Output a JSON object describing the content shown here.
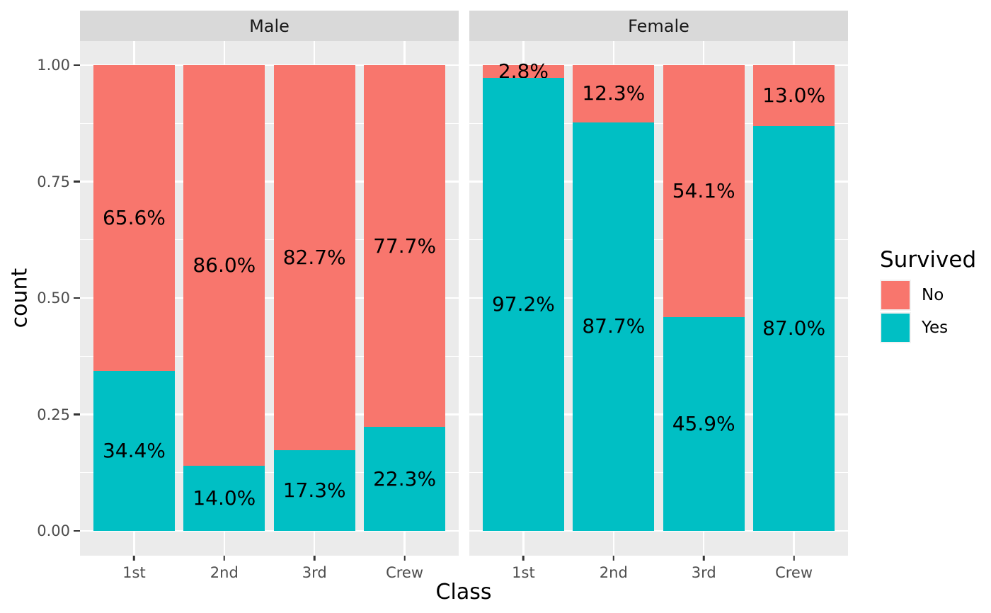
{
  "chart_data": {
    "type": "bar",
    "stacking": "fill",
    "title": "",
    "xlabel": "Class",
    "ylabel": "count",
    "ylim": [
      0,
      1
    ],
    "grid": true,
    "y_ticks": [
      "1.00",
      "0.75",
      "0.50",
      "0.25",
      "0.00"
    ],
    "y_tick_values": [
      1.0,
      0.75,
      0.5,
      0.25,
      0.0
    ],
    "y_minor_values": [
      0.875,
      0.625,
      0.375,
      0.125
    ],
    "categories": [
      "1st",
      "2nd",
      "3rd",
      "Crew"
    ],
    "facets": [
      {
        "label": "Male",
        "categories": [
          "1st",
          "2nd",
          "3rd",
          "Crew"
        ],
        "series": [
          {
            "name": "No",
            "values": [
              0.656,
              0.86,
              0.827,
              0.777
            ],
            "labels": [
              "65.6%",
              "86.0%",
              "82.7%",
              "77.7%"
            ]
          },
          {
            "name": "Yes",
            "values": [
              0.344,
              0.14,
              0.173,
              0.223
            ],
            "labels": [
              "34.4%",
              "14.0%",
              "17.3%",
              "22.3%"
            ]
          }
        ]
      },
      {
        "label": "Female",
        "categories": [
          "1st",
          "2nd",
          "3rd",
          "Crew"
        ],
        "series": [
          {
            "name": "No",
            "values": [
              0.028,
              0.123,
              0.541,
              0.13
            ],
            "labels": [
              "2.8%",
              "12.3%",
              "54.1%",
              "13.0%"
            ]
          },
          {
            "name": "Yes",
            "values": [
              0.972,
              0.877,
              0.459,
              0.87
            ],
            "labels": [
              "97.2%",
              "87.7%",
              "45.9%",
              "87.0%"
            ]
          }
        ]
      }
    ],
    "legend": {
      "title": "Survived",
      "position": "right",
      "entries": [
        {
          "label": "No",
          "color": "#F8766D"
        },
        {
          "label": "Yes",
          "color": "#00BFC4"
        }
      ]
    },
    "colors": {
      "no": "#F8766D",
      "yes": "#00BFC4",
      "panel_bg": "#EBEBEB",
      "strip_bg": "#D9D9D9",
      "gridline": "#FFFFFF",
      "axis_text": "#4D4D4D",
      "tick_mark": "#333333",
      "text": "#000000",
      "legend_key_bg": "#F2F2F2"
    }
  }
}
